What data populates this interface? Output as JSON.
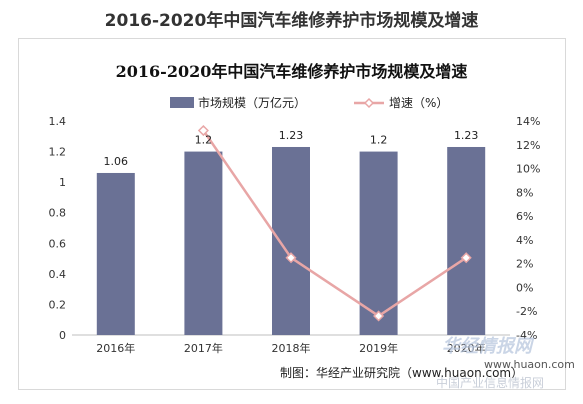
{
  "page_heading": "2016-2020年中国汽车维修养护市场规模及增速",
  "chart_data": {
    "type": "bar",
    "title": "2016-2020年中国汽车维修养护市场规模及增速",
    "categories": [
      "2016年",
      "2017年",
      "2018年",
      "2019年",
      "2020年"
    ],
    "series": [
      {
        "name": "市场规模（万亿元）",
        "type": "bar",
        "axis": "left",
        "values": [
          1.06,
          1.2,
          1.23,
          1.2,
          1.23
        ],
        "labels": [
          "1.06",
          "1.2",
          "1.23",
          "1.2",
          "1.23"
        ],
        "color": "#6a7195"
      },
      {
        "name": "增速（%）",
        "type": "line",
        "axis": "right",
        "values": [
          null,
          13.2,
          2.5,
          -2.4,
          2.5
        ],
        "color": "#e8a6a6"
      }
    ],
    "ylim": [
      0,
      1.4
    ],
    "yticks": [
      "0",
      "0.2",
      "0.4",
      "0.6",
      "0.8",
      "1",
      "1.2",
      "1.4"
    ],
    "y2lim": [
      -4,
      14
    ],
    "y2ticks": [
      "-4%",
      "-2%",
      "0%",
      "2%",
      "4%",
      "6%",
      "8%",
      "10%",
      "12%",
      "14%"
    ],
    "legend": "top",
    "grid": false
  },
  "source_note": "制图：华经产业研究院（www.huaon.com）",
  "watermark": {
    "logo": "华经情报网",
    "url": "www.huaon.com",
    "name": "中国产业信息情报网"
  }
}
